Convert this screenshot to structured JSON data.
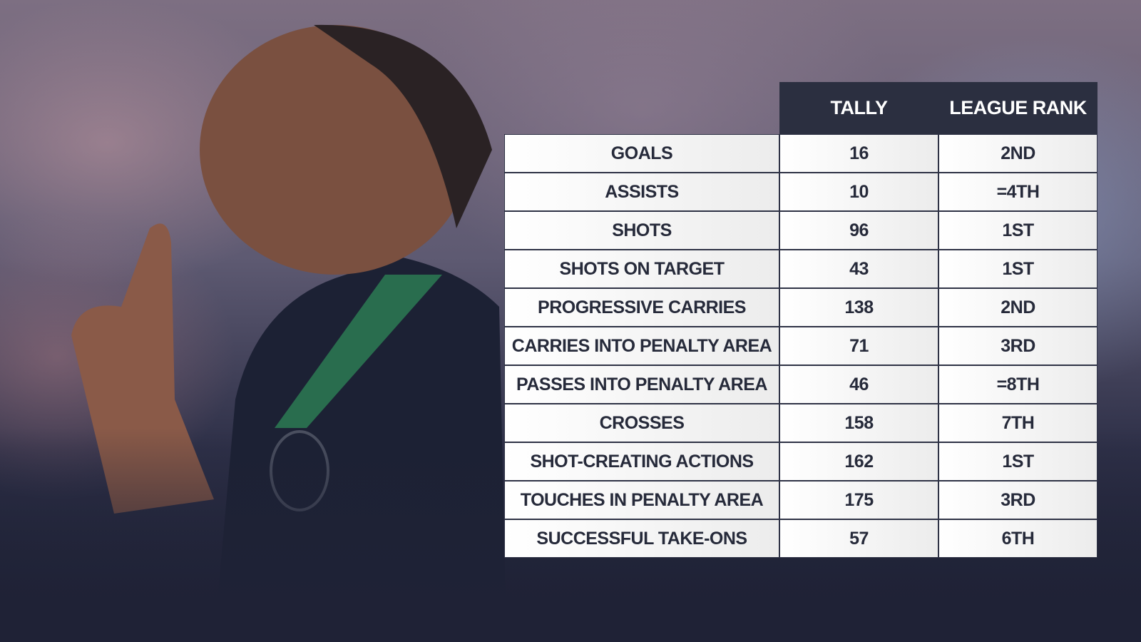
{
  "table": {
    "columns": [
      "TALLY",
      "LEAGUE RANK"
    ],
    "rows": [
      [
        "GOALS",
        "16",
        "2ND"
      ],
      [
        "ASSISTS",
        "10",
        "=4TH"
      ],
      [
        "SHOTS",
        "96",
        "1ST"
      ],
      [
        "SHOTS ON TARGET",
        "43",
        "1ST"
      ],
      [
        "PROGRESSIVE CARRIES",
        "138",
        "2ND"
      ],
      [
        "CARRIES INTO PENALTY AREA",
        "71",
        "3RD"
      ],
      [
        "PASSES INTO PENALTY AREA",
        "46",
        "=8TH"
      ],
      [
        "CROSSES",
        "158",
        "7TH"
      ],
      [
        "SHOT-CREATING ACTIONS",
        "162",
        "1ST"
      ],
      [
        "TOUCHES IN PENALTY AREA",
        "175",
        "3RD"
      ],
      [
        "SUCCESSFUL TAKE-ONS",
        "57",
        "6TH"
      ]
    ]
  }
}
